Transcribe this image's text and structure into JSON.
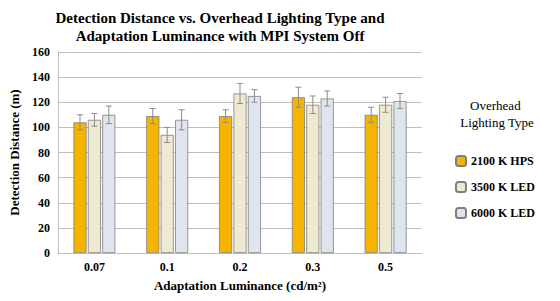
{
  "chart_data": {
    "type": "bar",
    "title": "Detection Distance vs. Overhead Lighting Type and\nAdaptation Luminance with MPI System Off",
    "x_label": "Adaptation Luminance (cd/m²)",
    "y_label": "Detection Distance (m)",
    "legend_title": "Overhead Lighting Type",
    "categories": [
      "0.07",
      "0.1",
      "0.2",
      "0.3",
      "0.5"
    ],
    "series": [
      {
        "name": "2100 K HPS",
        "color": "#f5b400",
        "values": [
          104,
          109,
          109,
          124,
          110
        ],
        "errors": [
          6,
          6,
          5,
          8,
          6
        ]
      },
      {
        "name": "3500 K LED",
        "color": "#efe9d2",
        "values": [
          106,
          94,
          127,
          118,
          118
        ],
        "errors": [
          5,
          6,
          8,
          7,
          6
        ]
      },
      {
        "name": "6000 K LED",
        "color": "#dfe5ef",
        "values": [
          110,
          106,
          125,
          123,
          121
        ],
        "errors": [
          7,
          8,
          5,
          6,
          6
        ]
      }
    ],
    "ylim": [
      0,
      160
    ],
    "yticks": [
      0,
      20,
      40,
      60,
      80,
      100,
      120,
      140,
      160
    ],
    "grid": true,
    "legend": "right"
  }
}
